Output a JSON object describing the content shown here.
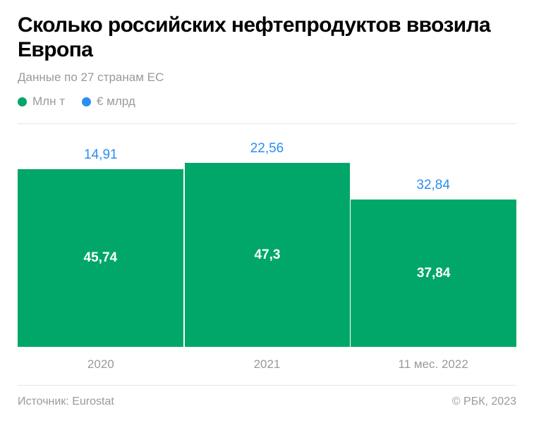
{
  "title": "Сколько российских нефтепродуктов ввозила Европа",
  "subtitle": "Данные по 27 странам ЕС",
  "legend": [
    {
      "label": "Млн т",
      "color": "#00a769"
    },
    {
      "label": "€ млрд",
      "color": "#2b8ff0"
    }
  ],
  "footer": {
    "source": "Источник: Eurostat",
    "copyright": "© РБК, 2023"
  },
  "chart_data": {
    "type": "bar",
    "title": "Сколько российских нефтепродуктов ввозила Европа",
    "subtitle": "Данные по 27 странам ЕС",
    "categories": [
      "2020",
      "2021",
      "11 мес. 2022"
    ],
    "series": [
      {
        "name": "Млн т",
        "values": [
          45.74,
          47.3,
          37.84
        ],
        "labels": [
          "45,74",
          "47,3",
          "37,84"
        ],
        "color": "#00a769"
      },
      {
        "name": "€ млрд",
        "values": [
          14.91,
          22.56,
          32.84
        ],
        "labels": [
          "14,91",
          "22,56",
          "32,84"
        ],
        "color": "#2b8ff0"
      }
    ],
    "xlabel": "",
    "ylabel": "",
    "grid": false,
    "legend_position": "top-left",
    "note": "Bar heights encode Млн т; € млрд shown as labels above bars"
  }
}
